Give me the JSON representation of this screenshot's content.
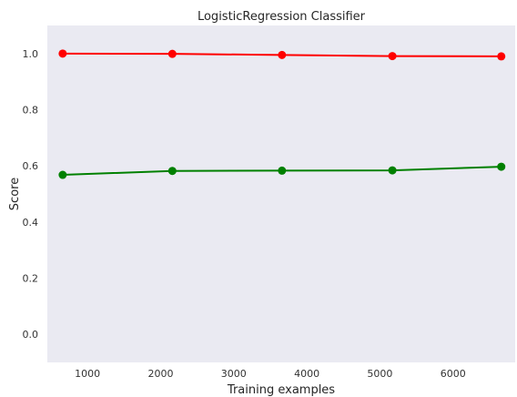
{
  "chart_data": {
    "type": "line",
    "title": "LogisticRegression Classifier",
    "xlabel": "Training examples",
    "ylabel": "Score",
    "xlim": [
      450,
      6850
    ],
    "ylim": [
      -0.1,
      1.1
    ],
    "xticks": [
      1000,
      2000,
      3000,
      4000,
      5000,
      6000
    ],
    "yticks": [
      0.0,
      0.2,
      0.4,
      0.6,
      0.8,
      1.0
    ],
    "grid": false,
    "x": [
      660,
      2160,
      3660,
      5170,
      6660
    ],
    "series": [
      {
        "color": "#ff0000",
        "values": [
          1.0,
          0.999,
          0.995,
          0.991,
          0.99
        ]
      },
      {
        "color": "#008000",
        "values": [
          0.568,
          0.582,
          0.583,
          0.584,
          0.597
        ]
      }
    ]
  },
  "colors": {
    "plot_background": "#eaeaf2"
  }
}
